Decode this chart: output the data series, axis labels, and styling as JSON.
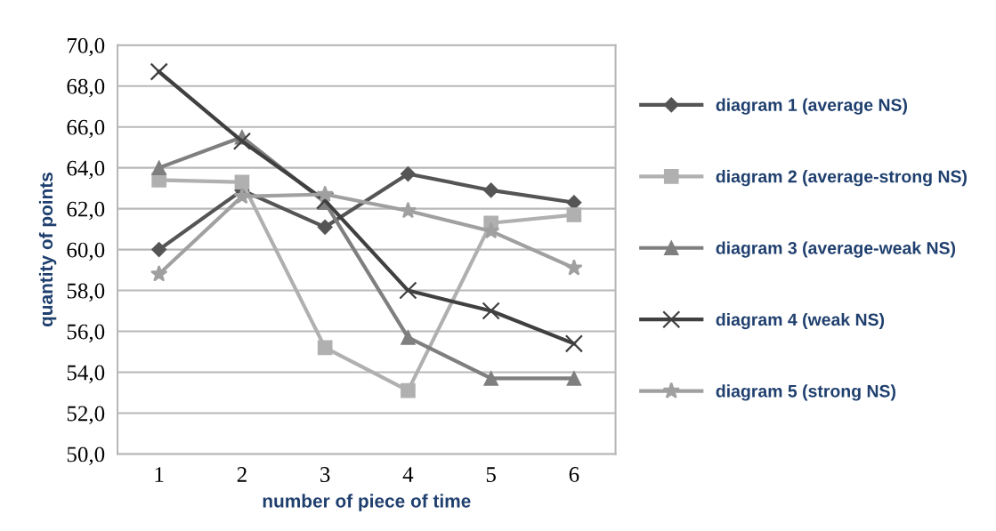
{
  "chart_data": {
    "type": "line",
    "xlabel": "number of piece of time",
    "ylabel": "quantity of points",
    "categories": [
      "1",
      "2",
      "3",
      "4",
      "5",
      "6"
    ],
    "series": [
      {
        "name": "diagram 1 (average NS)",
        "color": "#555555",
        "marker": "diamond",
        "values": [
          60.0,
          62.9,
          61.1,
          63.7,
          62.9,
          62.3
        ]
      },
      {
        "name": "diagram 2 (average-strong NS)",
        "color": "#b0b0b0",
        "marker": "square",
        "values": [
          63.4,
          63.3,
          55.2,
          53.1,
          61.3,
          61.7
        ]
      },
      {
        "name": "diagram 3 (average-weak NS)",
        "color": "#7f7f7f",
        "marker": "triangle",
        "values": [
          64.0,
          65.5,
          62.3,
          55.7,
          53.7,
          53.7
        ]
      },
      {
        "name": "diagram 4 (weak NS)",
        "color": "#404040",
        "marker": "cross",
        "values": [
          68.7,
          65.3,
          62.4,
          58.0,
          57.0,
          55.4
        ]
      },
      {
        "name": "diagram 5 (strong NS)",
        "color": "#a0a0a0",
        "marker": "star",
        "values": [
          58.8,
          62.6,
          62.7,
          61.9,
          60.9,
          59.1
        ]
      }
    ],
    "ylim": [
      50,
      70
    ],
    "yticks": [
      {
        "value": 50,
        "label": "50,0"
      },
      {
        "value": 52,
        "label": "52,0"
      },
      {
        "value": 54,
        "label": "54,0"
      },
      {
        "value": 56,
        "label": "56,0"
      },
      {
        "value": 58,
        "label": "58,0"
      },
      {
        "value": 60,
        "label": "60,0"
      },
      {
        "value": 62,
        "label": "62,0"
      },
      {
        "value": 64,
        "label": "64,0"
      },
      {
        "value": 66,
        "label": "66,0"
      },
      {
        "value": 68,
        "label": "68,0"
      },
      {
        "value": 70,
        "label": "70,0"
      }
    ],
    "grid": "y",
    "legend": "right",
    "line_style": "solid"
  }
}
